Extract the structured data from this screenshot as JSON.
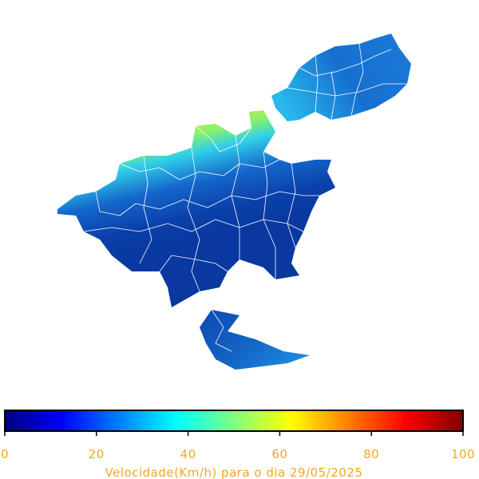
{
  "colorbar": {
    "lim": [
      0,
      100
    ],
    "ticks": [
      0,
      20,
      40,
      60,
      80,
      100
    ],
    "colormap": "jet",
    "label": "Velocidade(Km/h) para o dia 29/05/2025"
  }
}
